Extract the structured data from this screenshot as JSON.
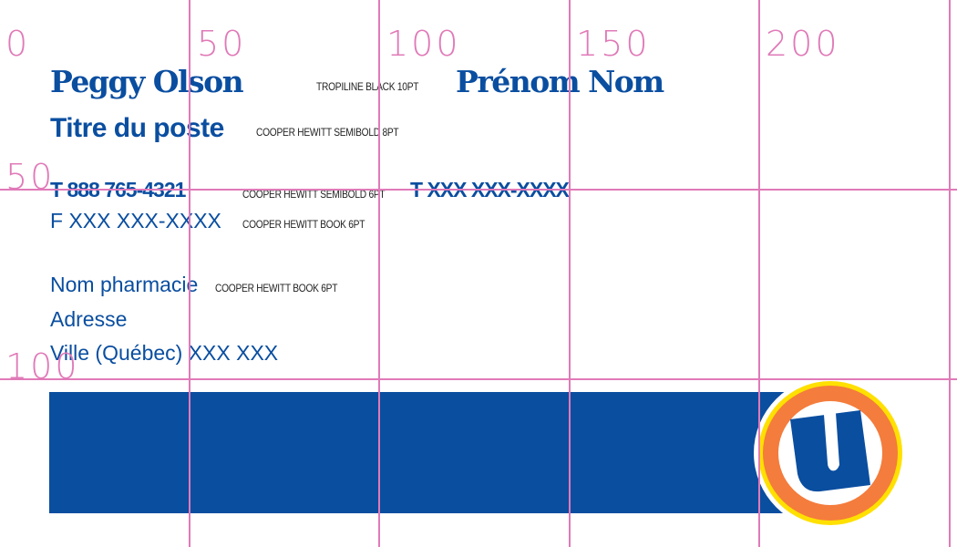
{
  "card": {
    "name_a": "Peggy Olson",
    "name_b": "Prénom Nom",
    "name_note": "TROPILINE BLACK 10PT",
    "title": "Titre du poste",
    "title_note": "COOPER HEWITT SEMIBOLD 8PT",
    "phone_a": "T 888 765-4321",
    "phone_b": "T XXX XXX-XXXX",
    "phone_note": "COOPER HEWITT SEMIBOLD 6PT",
    "fax": "F XXX XXX-XXXX",
    "fax_note": "COOPER HEWITT BOOK 6PT",
    "pharmacy": "Nom pharmacie",
    "pharmacy_note": "COOPER HEWITT BOOK 6PT",
    "address": "Adresse",
    "city": "Ville (Québec) XXX XXX"
  },
  "grid": {
    "x_labels": [
      "0",
      "50",
      "100",
      "150",
      "200"
    ],
    "y_labels": [
      "50",
      "100"
    ]
  },
  "colors": {
    "brand_blue": "#0a4ea0",
    "orange": "#f47c3c",
    "yellow": "#ffe000",
    "grid": "#e07ab8"
  },
  "logo": {
    "icon": "uniprix-u-logo"
  }
}
